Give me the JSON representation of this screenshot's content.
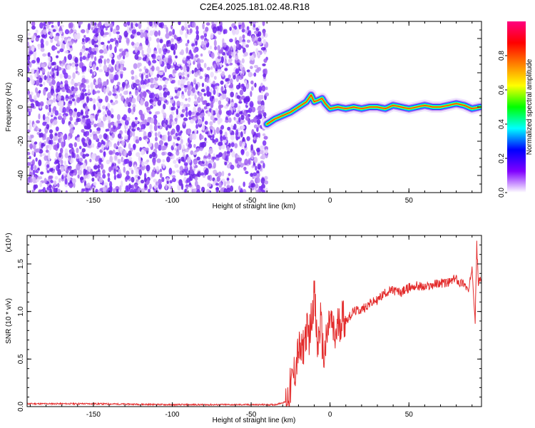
{
  "figure_title": "C2E4.2025.181.02.48.R18",
  "chart_data": [
    {
      "type": "heatmap",
      "title": "C2E4.2025.181.02.48.R18",
      "xlabel": "Height of straight line (km)",
      "ylabel": "Frequency (Hz)",
      "xlim": [
        -192,
        96
      ],
      "ylim": [
        -50,
        50
      ],
      "x_ticks": [
        -150,
        -100,
        -50,
        0,
        50
      ],
      "y_ticks": [
        -40,
        -20,
        0,
        20,
        40
      ],
      "colorbar": {
        "label": "Normalized spectral amplitude",
        "range": [
          0,
          1
        ],
        "ticks": [
          "0.0",
          "0.2",
          "0.4",
          "0.6",
          "0.8"
        ],
        "colormap": [
          "#ffffff",
          "#8000ff",
          "#0000ff",
          "#00ffff",
          "#00ff00",
          "#ffff00",
          "#ff8000",
          "#ff0000",
          "#ff0080"
        ]
      },
      "noise_region": {
        "x_range": [
          -192,
          -40
        ],
        "freq_range": [
          -50,
          50
        ],
        "amplitude": "low (0.0-0.25)",
        "color": "#7b2ff7"
      },
      "signal_trace": {
        "x": [
          -40,
          -35,
          -30,
          -25,
          -20,
          -15,
          -12,
          -10,
          -5,
          -3,
          0,
          5,
          10,
          15,
          20,
          25,
          30,
          35,
          40,
          45,
          50,
          55,
          60,
          65,
          70,
          75,
          80,
          85,
          90,
          95
        ],
        "freq": [
          -10,
          -7,
          -5,
          -3,
          0,
          3,
          7,
          3,
          5,
          2,
          -1,
          0,
          -1,
          0,
          -1,
          0,
          0,
          -1,
          1,
          0,
          -1,
          0,
          1,
          0,
          0,
          1,
          2,
          1,
          -1,
          0
        ]
      }
    },
    {
      "type": "line",
      "xlabel": "Height of straight line (km)",
      "ylabel": "SNR (10 * v/v)",
      "y_multiplier": "(x10⁴)",
      "xlim": [
        -192,
        96
      ],
      "ylim": [
        0,
        1.8
      ],
      "x_ticks": [
        -150,
        -100,
        -50,
        0,
        50
      ],
      "y_ticks": [
        "0.0",
        "0.5",
        "1.0",
        "1.5"
      ],
      "y_tick_values": [
        0,
        0.5,
        1.0,
        1.5
      ],
      "line_color": "#e32b2b",
      "x": [
        -192,
        -180,
        -150,
        -100,
        -60,
        -45,
        -35,
        -28,
        -25,
        -22,
        -20,
        -18,
        -15,
        -13,
        -10,
        -8,
        -6,
        -4,
        -2,
        0,
        3,
        5,
        8,
        10,
        15,
        20,
        25,
        30,
        35,
        40,
        45,
        50,
        55,
        60,
        65,
        70,
        75,
        80,
        82,
        85,
        88,
        90,
        92,
        93,
        94,
        96
      ],
      "y": [
        0.03,
        0.03,
        0.03,
        0.02,
        0.02,
        0.02,
        0.02,
        0.05,
        0.2,
        0.4,
        0.6,
        0.55,
        0.8,
        0.75,
        1.2,
        0.6,
        0.9,
        0.5,
        0.7,
        0.95,
        0.7,
        0.85,
        0.95,
        0.9,
        1.0,
        1.02,
        1.08,
        1.12,
        1.2,
        1.22,
        1.2,
        1.25,
        1.27,
        1.25,
        1.28,
        1.3,
        1.3,
        1.35,
        1.3,
        1.3,
        1.2,
        1.5,
        0.9,
        1.7,
        1.3,
        1.35
      ]
    }
  ]
}
